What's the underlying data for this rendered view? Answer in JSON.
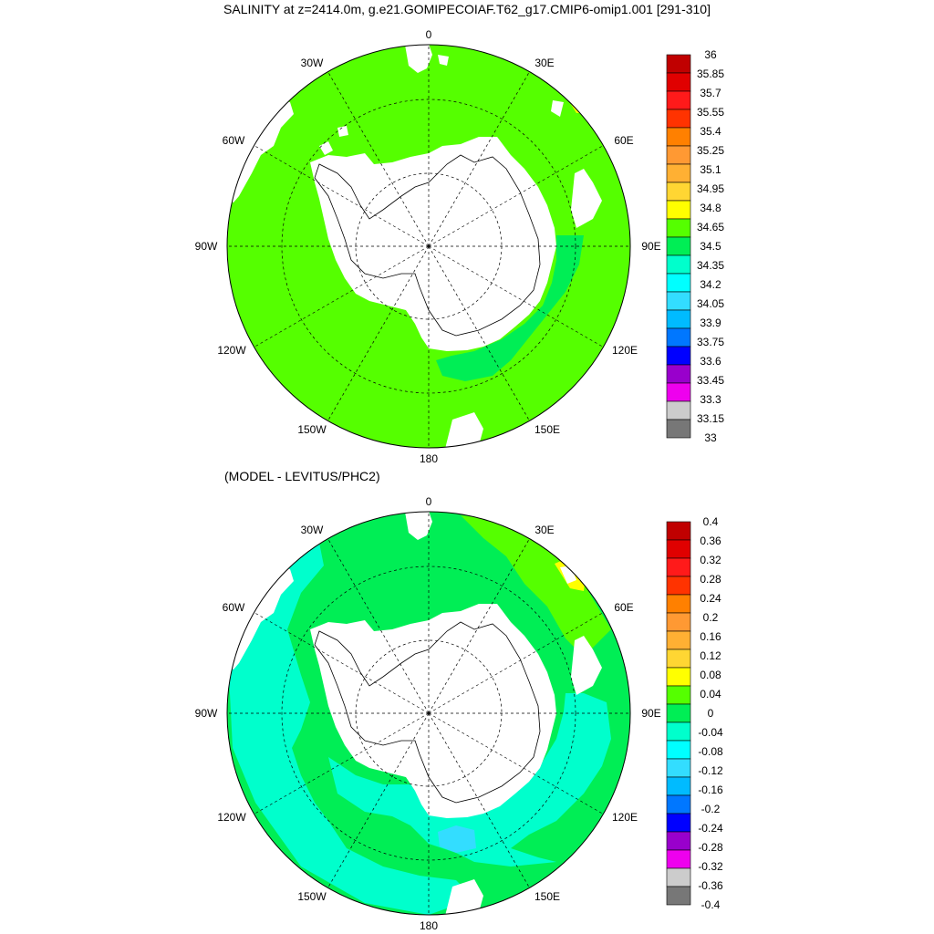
{
  "title": "SALINITY at z=2414.0m, g.e21.GOMIPECOIAF.T62_g17.CMIP6-omip1.001 [291-310]",
  "subtitle": "(MODEL - LEVITUS/PHC2)",
  "lon_labels": {
    "n0": "0",
    "n30e": "30E",
    "n60e": "60E",
    "n90e": "90E",
    "n120e": "120E",
    "n150e": "150E",
    "n180": "180",
    "n150w": "150W",
    "n120w": "120W",
    "n90w": "90W",
    "n60w": "60W",
    "n30w": "30W"
  },
  "colorbar_top": {
    "labels": [
      "36",
      "35.85",
      "35.7",
      "35.55",
      "35.4",
      "35.25",
      "35.1",
      "34.95",
      "34.8",
      "34.65",
      "34.5",
      "34.35",
      "34.2",
      "34.05",
      "33.9",
      "33.75",
      "33.6",
      "33.45",
      "33.3",
      "33.15",
      "33"
    ],
    "colors": [
      "#c00000",
      "#e00000",
      "#ff1a1a",
      "#ff3300",
      "#ff8000",
      "#ff9933",
      "#ffb033",
      "#ffd633",
      "#ffff00",
      "#55ff00",
      "#00ee55",
      "#00ffcc",
      "#00ffff",
      "#33ddff",
      "#00bbff",
      "#0077ff",
      "#0000ff",
      "#9900cc",
      "#ee00ee",
      "#cccccc",
      "#777777"
    ]
  },
  "colorbar_bottom": {
    "labels": [
      "0.4",
      "0.36",
      "0.32",
      "0.28",
      "0.24",
      "0.2",
      "0.16",
      "0.12",
      "0.08",
      "0.04",
      "0",
      "-0.04",
      "-0.08",
      "-0.12",
      "-0.16",
      "-0.2",
      "-0.24",
      "-0.28",
      "-0.32",
      "-0.36",
      "-0.4"
    ],
    "colors": [
      "#c00000",
      "#e00000",
      "#ff1a1a",
      "#ff3300",
      "#ff8000",
      "#ff9933",
      "#ffb033",
      "#ffd633",
      "#ffff00",
      "#55ff00",
      "#00ee55",
      "#00ffcc",
      "#00ffff",
      "#33ddff",
      "#00bbff",
      "#0077ff",
      "#0000ff",
      "#9900cc",
      "#ee00ee",
      "#cccccc",
      "#777777"
    ]
  },
  "map_colors": {
    "top_ocean": "#55ff00",
    "top_ross_low": "#00ee55",
    "top_high_spot": "#ffff00",
    "bottom_ocean": "#00ee55",
    "bottom_negative": "#00ffcc",
    "bottom_more_negative": "#33ddff",
    "bottom_positive": "#55ff00",
    "bottom_positive_high": "#ffff00",
    "land": "#ffffff"
  }
}
